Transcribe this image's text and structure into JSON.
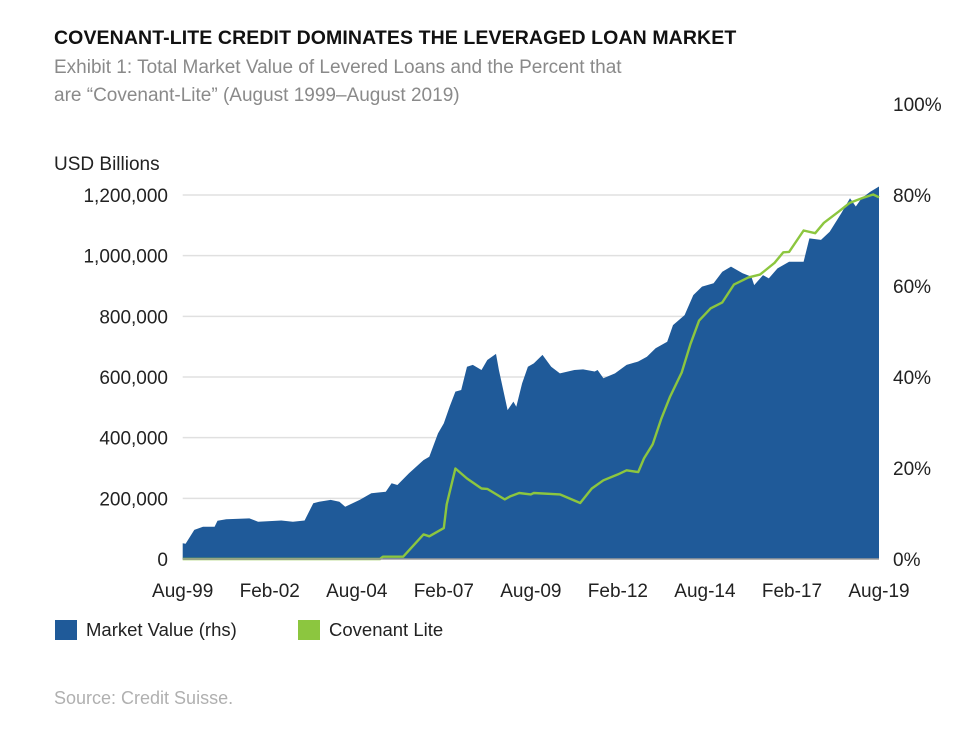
{
  "title": "COVENANT-LITE CREDIT DOMINATES THE LEVERAGED LOAN MARKET",
  "subtitle_line1": "Exhibit 1: Total Market Value of Levered Loans and the Percent that",
  "subtitle_line2": "are “Covenant-Lite” (August 1999–August 2019)",
  "source": "Source: Credit Suisse.",
  "colors": {
    "market_value": "#1f5a99",
    "covenant_lite": "#8cc63f",
    "grid": "#e0e0e0"
  },
  "chart_data": {
    "type": "area+line",
    "ylabel_left": "USD Billions",
    "ylim_left": [
      0,
      1200000
    ],
    "ylim_right": [
      0,
      100
    ],
    "left_ticks": [
      "0",
      "200,000",
      "400,000",
      "600,000",
      "800,000",
      "1,000,000",
      "1,200,000"
    ],
    "left_tick_values": [
      0,
      200000,
      400000,
      600000,
      800000,
      1000000,
      1200000
    ],
    "right_ticks": [
      "0%",
      "20%",
      "40%",
      "60%",
      "80%",
      "100%"
    ],
    "right_tick_values": [
      0,
      20,
      40,
      60,
      80,
      100
    ],
    "x_ticks": [
      "Aug-99",
      "Feb-02",
      "Aug-04",
      "Feb-07",
      "Aug-09",
      "Feb-12",
      "Aug-14",
      "Feb-17",
      "Aug-19"
    ],
    "x_tick_dates": [
      "1999-08",
      "2002-02",
      "2004-08",
      "2007-02",
      "2009-08",
      "2012-02",
      "2014-08",
      "2017-02",
      "2019-08"
    ],
    "xlim": [
      "1999-08",
      "2019-08"
    ],
    "grid": "horizontal",
    "legend_placement": "bottom-left",
    "legend": [
      "Market Value (rhs)",
      "Covenant Lite"
    ],
    "series": [
      {
        "name": "Market Value (rhs)",
        "type": "area",
        "axis": "left",
        "points": [
          [
            "1999-08",
            52000
          ],
          [
            "1999-09",
            50000
          ],
          [
            "1999-12",
            96000
          ],
          [
            "2000-03",
            106000
          ],
          [
            "2000-07",
            106000
          ],
          [
            "2000-08",
            126000
          ],
          [
            "2000-11",
            131000
          ],
          [
            "2001-07",
            134000
          ],
          [
            "2001-10",
            123000
          ],
          [
            "2002-06",
            127000
          ],
          [
            "2002-10",
            123000
          ],
          [
            "2003-02",
            127000
          ],
          [
            "2003-05",
            184000
          ],
          [
            "2003-07",
            189000
          ],
          [
            "2003-11",
            195000
          ],
          [
            "2004-02",
            189000
          ],
          [
            "2004-04",
            172000
          ],
          [
            "2004-09",
            195000
          ],
          [
            "2005-01",
            217000
          ],
          [
            "2005-06",
            222000
          ],
          [
            "2005-08",
            250000
          ],
          [
            "2005-10",
            244000
          ],
          [
            "2006-02",
            283000
          ],
          [
            "2006-07",
            326000
          ],
          [
            "2006-09",
            337000
          ],
          [
            "2006-12",
            414000
          ],
          [
            "2007-02",
            447000
          ],
          [
            "2007-04",
            502000
          ],
          [
            "2007-06",
            552000
          ],
          [
            "2007-08",
            557000
          ],
          [
            "2007-10",
            634000
          ],
          [
            "2007-12",
            640000
          ],
          [
            "2008-03",
            623000
          ],
          [
            "2008-05",
            656000
          ],
          [
            "2008-08",
            676000
          ],
          [
            "2008-09",
            623000
          ],
          [
            "2008-12",
            491000
          ],
          [
            "2009-02",
            519000
          ],
          [
            "2009-03",
            502000
          ],
          [
            "2009-05",
            579000
          ],
          [
            "2009-07",
            634000
          ],
          [
            "2009-09",
            645000
          ],
          [
            "2009-12",
            673000
          ],
          [
            "2010-03",
            634000
          ],
          [
            "2010-06",
            612000
          ],
          [
            "2010-11",
            623000
          ],
          [
            "2011-02",
            625000
          ],
          [
            "2011-06",
            618000
          ],
          [
            "2011-07",
            623000
          ],
          [
            "2011-09",
            596000
          ],
          [
            "2012-01",
            612000
          ],
          [
            "2012-05",
            640000
          ],
          [
            "2012-09",
            651000
          ],
          [
            "2012-12",
            667000
          ],
          [
            "2013-03",
            695000
          ],
          [
            "2013-07",
            716000
          ],
          [
            "2013-09",
            771000
          ],
          [
            "2014-01",
            804000
          ],
          [
            "2014-04",
            870000
          ],
          [
            "2014-07",
            898000
          ],
          [
            "2014-11",
            909000
          ],
          [
            "2015-02",
            947000
          ],
          [
            "2015-05",
            964000
          ],
          [
            "2015-09",
            942000
          ],
          [
            "2015-12",
            931000
          ],
          [
            "2016-01",
            903000
          ],
          [
            "2016-04",
            936000
          ],
          [
            "2016-06",
            925000
          ],
          [
            "2016-09",
            958000
          ],
          [
            "2017-01",
            980000
          ],
          [
            "2017-06",
            980000
          ],
          [
            "2017-08",
            1057000
          ],
          [
            "2017-12",
            1052000
          ],
          [
            "2018-03",
            1079000
          ],
          [
            "2018-07",
            1140000
          ],
          [
            "2018-10",
            1189000
          ],
          [
            "2018-12",
            1162000
          ],
          [
            "2019-02",
            1189000
          ],
          [
            "2019-05",
            1211000
          ],
          [
            "2019-08",
            1228000
          ]
        ]
      },
      {
        "name": "Covenant Lite",
        "type": "line",
        "axis": "right",
        "points": [
          [
            "1999-08",
            0
          ],
          [
            "2005-04",
            0
          ],
          [
            "2005-05",
            0.5
          ],
          [
            "2005-12",
            0.5
          ],
          [
            "2006-07",
            5.4
          ],
          [
            "2006-09",
            5.0
          ],
          [
            "2007-02",
            6.8
          ],
          [
            "2007-03",
            12.0
          ],
          [
            "2007-06",
            19.9
          ],
          [
            "2007-10",
            17.7
          ],
          [
            "2008-03",
            15.5
          ],
          [
            "2008-05",
            15.4
          ],
          [
            "2008-11",
            13.1
          ],
          [
            "2009-01",
            13.8
          ],
          [
            "2009-04",
            14.5
          ],
          [
            "2009-08",
            14.2
          ],
          [
            "2009-09",
            14.5
          ],
          [
            "2010-06",
            14.2
          ],
          [
            "2011-01",
            12.3
          ],
          [
            "2011-05",
            15.5
          ],
          [
            "2011-09",
            17.3
          ],
          [
            "2012-02",
            18.6
          ],
          [
            "2012-05",
            19.5
          ],
          [
            "2012-09",
            19.1
          ],
          [
            "2012-11",
            22.1
          ],
          [
            "2013-02",
            25.2
          ],
          [
            "2013-05",
            30.9
          ],
          [
            "2013-08",
            35.7
          ],
          [
            "2013-12",
            41.0
          ],
          [
            "2014-03",
            47.2
          ],
          [
            "2014-06",
            52.4
          ],
          [
            "2014-10",
            55.1
          ],
          [
            "2015-02",
            56.4
          ],
          [
            "2015-06",
            60.3
          ],
          [
            "2015-11",
            61.9
          ],
          [
            "2016-03",
            62.5
          ],
          [
            "2016-08",
            65.1
          ],
          [
            "2016-11",
            67.4
          ],
          [
            "2017-01",
            67.5
          ],
          [
            "2017-06",
            72.2
          ],
          [
            "2017-10",
            71.6
          ],
          [
            "2018-01",
            73.9
          ],
          [
            "2018-06",
            76.3
          ],
          [
            "2018-10",
            78.3
          ],
          [
            "2019-03",
            79.5
          ],
          [
            "2019-06",
            80.1
          ],
          [
            "2019-08",
            79.5
          ]
        ]
      }
    ]
  }
}
